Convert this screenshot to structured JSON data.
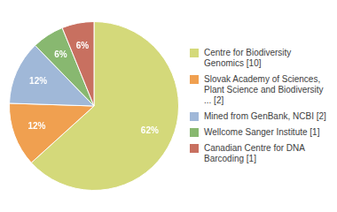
{
  "chart_data": {
    "type": "pie",
    "categories": [
      "Centre for Biodiversity\nGenomics [10]",
      "Slovak Academy of Sciences,\nPlant Science and Biodiversity\n... [2]",
      "Mined from GenBank, NCBI [2]",
      "Wellcome Sanger Institute [1]",
      "Canadian Centre for DNA\nBarcoding [1]"
    ],
    "values": [
      62,
      12,
      12,
      6,
      6
    ],
    "value_labels": [
      "62%",
      "12%",
      "12%",
      "6%",
      "6%"
    ],
    "colors": [
      "#d4d97a",
      "#f0a050",
      "#a0b8d8",
      "#88b870",
      "#c87060"
    ],
    "data_labels": true,
    "legend": "right"
  }
}
